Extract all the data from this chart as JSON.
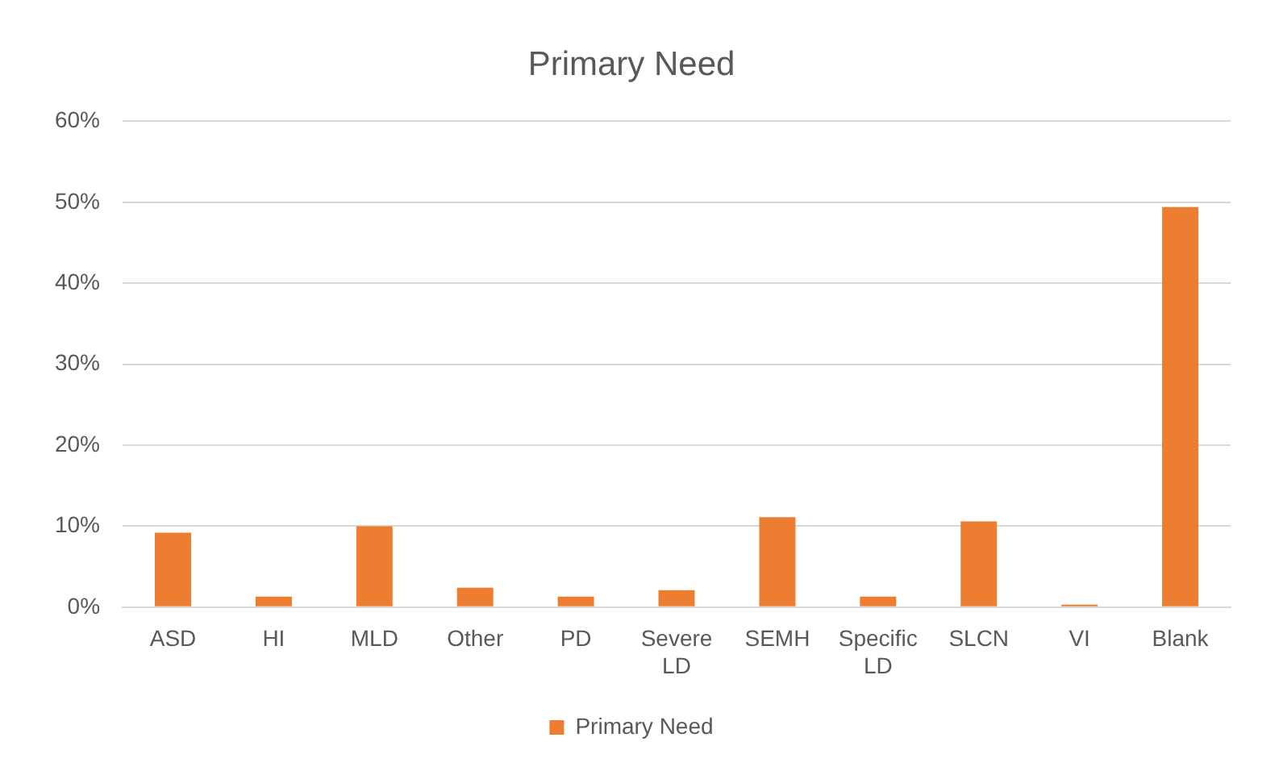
{
  "chart_data": {
    "type": "bar",
    "title": "Primary Need",
    "categories": [
      "ASD",
      "HI",
      "MLD",
      "Other",
      "PD",
      "Severe LD",
      "SEMH",
      "Specific LD",
      "SLCN",
      "VI",
      "Blank"
    ],
    "series": [
      {
        "name": "Primary Need",
        "color": "#ed7d31",
        "values": [
          9.2,
          1.3,
          10.0,
          2.4,
          1.3,
          2.1,
          11.1,
          1.3,
          10.6,
          0.3,
          49.4
        ]
      }
    ],
    "ylim": [
      0,
      60
    ],
    "yticks": [
      {
        "value": 0,
        "label": "0%"
      },
      {
        "value": 10,
        "label": "10%"
      },
      {
        "value": 20,
        "label": "20%"
      },
      {
        "value": 30,
        "label": "30%"
      },
      {
        "value": 40,
        "label": "40%"
      },
      {
        "value": 50,
        "label": "50%"
      },
      {
        "value": 60,
        "label": "60%"
      }
    ],
    "grid": "y",
    "legend": "bottom"
  }
}
